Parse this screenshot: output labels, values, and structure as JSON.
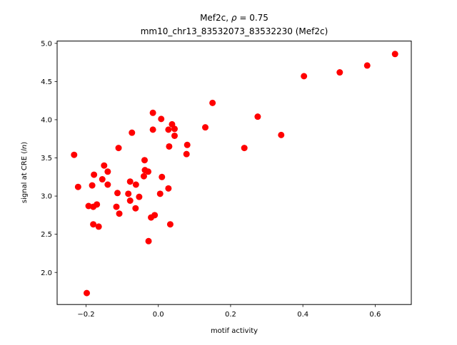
{
  "chart_data": {
    "type": "scatter",
    "title_line1_prefix": "Mef2c, ",
    "title_rho_symbol": "ρ",
    "title_rho_value": " = 0.75",
    "title_line2": "mm10_chr13_83532073_83532230 (Mef2c)",
    "xlabel": "motif activity",
    "ylabel_prefix": "signal at CRE (",
    "ylabel_italic": "ln",
    "ylabel_suffix": ")",
    "xlim": [
      -0.28,
      0.7
    ],
    "ylim": [
      1.58,
      5.03
    ],
    "xticks": [
      {
        "value": -0.2,
        "label": "−0.2"
      },
      {
        "value": 0.0,
        "label": "0.0"
      },
      {
        "value": 0.2,
        "label": "0.2"
      },
      {
        "value": 0.4,
        "label": "0.4"
      },
      {
        "value": 0.6,
        "label": "0.6"
      }
    ],
    "yticks": [
      {
        "value": 2.0,
        "label": "2.0"
      },
      {
        "value": 2.5,
        "label": "2.5"
      },
      {
        "value": 3.0,
        "label": "3.0"
      },
      {
        "value": 3.5,
        "label": "3.5"
      },
      {
        "value": 4.0,
        "label": "4.0"
      },
      {
        "value": 4.5,
        "label": "4.5"
      },
      {
        "value": 5.0,
        "label": "5.0"
      }
    ],
    "grid": false,
    "marker_color": "#ff0000",
    "points": [
      [
        0.655,
        4.86
      ],
      [
        0.578,
        4.71
      ],
      [
        0.502,
        4.62
      ],
      [
        0.403,
        4.57
      ],
      [
        0.15,
        4.22
      ],
      [
        0.275,
        4.04
      ],
      [
        0.34,
        3.8
      ],
      [
        0.13,
        3.9
      ],
      [
        0.238,
        3.63
      ],
      [
        -0.015,
        4.09
      ],
      [
        0.008,
        4.01
      ],
      [
        0.038,
        3.94
      ],
      [
        0.045,
        3.88
      ],
      [
        0.028,
        3.87
      ],
      [
        -0.015,
        3.87
      ],
      [
        -0.073,
        3.83
      ],
      [
        0.045,
        3.79
      ],
      [
        0.08,
        3.67
      ],
      [
        0.03,
        3.65
      ],
      [
        -0.11,
        3.63
      ],
      [
        0.078,
        3.55
      ],
      [
        -0.233,
        3.54
      ],
      [
        -0.038,
        3.47
      ],
      [
        -0.15,
        3.4
      ],
      [
        -0.037,
        3.34
      ],
      [
        -0.14,
        3.32
      ],
      [
        -0.028,
        3.32
      ],
      [
        -0.178,
        3.28
      ],
      [
        -0.04,
        3.26
      ],
      [
        0.01,
        3.25
      ],
      [
        -0.155,
        3.22
      ],
      [
        -0.078,
        3.19
      ],
      [
        -0.14,
        3.15
      ],
      [
        -0.062,
        3.15
      ],
      [
        -0.183,
        3.14
      ],
      [
        -0.222,
        3.12
      ],
      [
        0.028,
        3.1
      ],
      [
        -0.113,
        3.04
      ],
      [
        -0.083,
        3.03
      ],
      [
        0.005,
        3.03
      ],
      [
        -0.053,
        2.99
      ],
      [
        -0.078,
        2.94
      ],
      [
        -0.17,
        2.89
      ],
      [
        -0.193,
        2.87
      ],
      [
        -0.18,
        2.86
      ],
      [
        -0.116,
        2.86
      ],
      [
        -0.063,
        2.84
      ],
      [
        -0.108,
        2.77
      ],
      [
        -0.01,
        2.75
      ],
      [
        -0.02,
        2.72
      ],
      [
        -0.18,
        2.63
      ],
      [
        0.033,
        2.63
      ],
      [
        -0.165,
        2.6
      ],
      [
        -0.027,
        2.41
      ],
      [
        -0.198,
        1.73
      ]
    ]
  }
}
